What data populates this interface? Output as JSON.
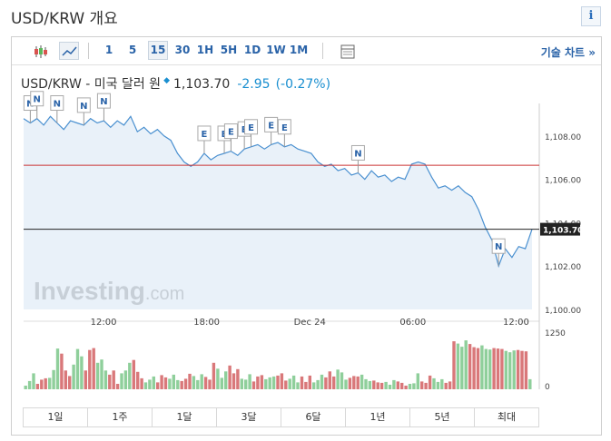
{
  "page": {
    "title": "USD/KRW 개요",
    "info_label": "i"
  },
  "toolbar": {
    "icons": [
      "candlestick-icon",
      "line-chart-icon",
      "table-icon"
    ],
    "intervals": [
      "1",
      "5",
      "15",
      "30",
      "1H",
      "5H",
      "1D",
      "1W",
      "1M"
    ],
    "active_interval": "15",
    "technical_link": "기술 차트 »"
  },
  "quote": {
    "name": "USD/KRW - 미국 달러 원",
    "price": "1,103.70",
    "change": "-2.95",
    "change_pct": "(-0.27%)",
    "color_down": "#1a8fd0"
  },
  "chart_data": {
    "type": "area",
    "y_axis": {
      "ticks": [
        "1,108.00",
        "1,106.00",
        "1,104.00",
        "1,102.00",
        "1,100.00"
      ],
      "ylim": [
        1100,
        1109.5
      ]
    },
    "x_axis": {
      "ticks": [
        "12:00",
        "18:00",
        "Dec 24",
        "06:00",
        "12:00"
      ]
    },
    "last_price_label": "1,103.70",
    "last_price": 1103.7,
    "reference_line": 1106.65,
    "series": [
      {
        "values": [
          1108.8,
          1108.6,
          1108.8,
          1108.5,
          1108.9,
          1108.6,
          1108.3,
          1108.7,
          1108.6,
          1108.5,
          1108.8,
          1108.6,
          1108.7,
          1108.4,
          1108.7,
          1108.5,
          1108.9,
          1108.2,
          1108.4,
          1108.1,
          1108.3,
          1108.0,
          1107.8,
          1107.2,
          1106.8,
          1106.6,
          1106.8,
          1107.2,
          1106.9,
          1107.1,
          1107.2,
          1107.3,
          1107.1,
          1107.4,
          1107.5,
          1107.6,
          1107.4,
          1107.6,
          1107.7,
          1107.5,
          1107.6,
          1107.4,
          1107.3,
          1107.2,
          1106.8,
          1106.6,
          1106.7,
          1106.4,
          1106.5,
          1106.2,
          1106.3,
          1106.0,
          1106.4,
          1106.1,
          1106.2,
          1105.9,
          1106.1,
          1106.0,
          1106.7,
          1106.8,
          1106.7,
          1106.1,
          1105.6,
          1105.7,
          1105.5,
          1105.7,
          1105.4,
          1105.2,
          1104.6,
          1103.8,
          1103.2,
          1102.0,
          1102.8,
          1102.4,
          1102.9,
          1102.8,
          1103.7
        ]
      }
    ],
    "volume": {
      "ylim_label": "1250",
      "zero_label": "0",
      "values": [
        80,
        180,
        350,
        120,
        210,
        240,
        250,
        420,
        890,
        780,
        410,
        290,
        540,
        880,
        720,
        410,
        860,
        900,
        580,
        650,
        410,
        320,
        410,
        120,
        350,
        410,
        580,
        640,
        380,
        240,
        150,
        210,
        280,
        150,
        310,
        260,
        230,
        320,
        200,
        180,
        230,
        340,
        290,
        200,
        330,
        270,
        210,
        580,
        450,
        250,
        390,
        520,
        350,
        440,
        230,
        210,
        330,
        170,
        280,
        310,
        220,
        260,
        280,
        300,
        350,
        190,
        230,
        300,
        150,
        280,
        160,
        300,
        150,
        200,
        320,
        260,
        390,
        280,
        430,
        370,
        210,
        250,
        290,
        280,
        320,
        220,
        180,
        190,
        150,
        140,
        160,
        100,
        200,
        170,
        140,
        80,
        120,
        130,
        350,
        170,
        140,
        300,
        240,
        160,
        220,
        140,
        170,
        1050,
        1000,
        930,
        1070,
        990,
        920,
        900,
        960,
        880,
        870,
        900,
        890,
        880,
        840,
        810,
        850,
        860,
        840,
        830,
        220
      ]
    },
    "news_markers": [
      {
        "label": "N",
        "idx": 1
      },
      {
        "label": "N",
        "idx": 2
      },
      {
        "label": "N",
        "idx": 5
      },
      {
        "label": "N",
        "idx": 9
      },
      {
        "label": "N",
        "idx": 12
      },
      {
        "label": "E",
        "idx": 27
      },
      {
        "label": "E",
        "idx": 30
      },
      {
        "label": "E",
        "idx": 31
      },
      {
        "label": "E",
        "idx": 33
      },
      {
        "label": "E",
        "idx": 34
      },
      {
        "label": "E",
        "idx": 37
      },
      {
        "label": "E",
        "idx": 39
      },
      {
        "label": "N",
        "idx": 50
      },
      {
        "label": "N",
        "idx": 71
      }
    ]
  },
  "watermark": {
    "brand": "Investing",
    "suffix": ".com"
  },
  "ranges": [
    "1일",
    "1주",
    "1달",
    "3달",
    "6달",
    "1년",
    "5년",
    "최대"
  ],
  "colors": {
    "line": "#4a90d0",
    "area": "#e4eef8",
    "volume_up": "#8fcf9b",
    "volume_down": "#d9787a",
    "ref_line": "#cc3333"
  }
}
